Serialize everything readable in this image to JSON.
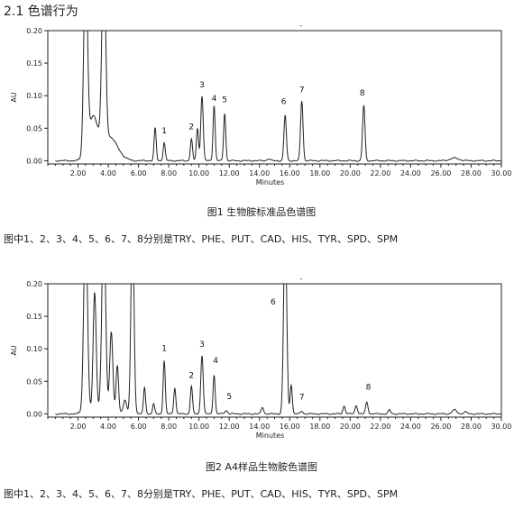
{
  "section_title": "2.1 色谱行为",
  "colors": {
    "trace": "#222222",
    "axis": "#222222",
    "grid": "#dddddd"
  },
  "chart_data": [
    {
      "type": "line",
      "caption": "图1 生物胺标准品色谱图",
      "note": "图中1、2、3、4、5、6、7、8分别是TRY、PHE、PUT、CAD、HIS、TYR、SPD、SPM",
      "ylabel": "AU",
      "xlabel": "Minutes",
      "xlim": [
        0,
        30
      ],
      "ylim": [
        -0.005,
        0.2
      ],
      "y_ticks": [
        "0.00",
        "0.05",
        "0.10",
        "0.15",
        "0.20"
      ],
      "x_ticks": [
        "2.00",
        "4.00",
        "6.00",
        "8.00",
        "10.00",
        "12.00",
        "14.00",
        "16.00",
        "18.00",
        "20.00",
        "22.00",
        "24.00",
        "26.00",
        "28.00",
        "30.00"
      ],
      "top_mark": "-",
      "peaks": [
        {
          "rt": 2.5,
          "h": 0.3,
          "w": 0.12
        },
        {
          "rt": 3.0,
          "h": 0.06,
          "w": 0.3
        },
        {
          "rt": 3.7,
          "h": 0.3,
          "w": 0.12
        },
        {
          "rt": 4.1,
          "h": 0.03,
          "w": 0.5
        },
        {
          "rt": 7.1,
          "h": 0.05,
          "w": 0.07
        },
        {
          "rt": 7.7,
          "h": 0.028,
          "w": 0.07
        },
        {
          "rt": 9.5,
          "h": 0.034,
          "w": 0.07
        },
        {
          "rt": 9.9,
          "h": 0.05,
          "w": 0.07
        },
        {
          "rt": 10.2,
          "h": 0.1,
          "w": 0.08
        },
        {
          "rt": 11.0,
          "h": 0.085,
          "w": 0.07
        },
        {
          "rt": 11.7,
          "h": 0.073,
          "w": 0.07
        },
        {
          "rt": 14.6,
          "h": 0.003,
          "w": 0.1
        },
        {
          "rt": 15.7,
          "h": 0.07,
          "w": 0.08
        },
        {
          "rt": 16.8,
          "h": 0.092,
          "w": 0.08
        },
        {
          "rt": 20.9,
          "h": 0.085,
          "w": 0.08
        },
        {
          "rt": 26.9,
          "h": 0.004,
          "w": 0.3
        }
      ],
      "labels": [
        {
          "text": "1",
          "x": 7.7,
          "y": 0.042
        },
        {
          "text": "2",
          "x": 9.5,
          "y": 0.048
        },
        {
          "text": "3",
          "x": 10.2,
          "y": 0.113
        },
        {
          "text": "4",
          "x": 11.0,
          "y": 0.092
        },
        {
          "text": "5",
          "x": 11.7,
          "y": 0.09
        },
        {
          "text": "6",
          "x": 15.6,
          "y": 0.087
        },
        {
          "text": "7",
          "x": 16.8,
          "y": 0.105
        },
        {
          "text": "8",
          "x": 20.8,
          "y": 0.1
        }
      ]
    },
    {
      "type": "line",
      "caption": "图2 A4样品生物胺色谱图",
      "note": "图中1、2、3、4、5、6、7、8分别是TRY、PHE、PUT、CAD、HIS、TYR、SPD、SPM",
      "ylabel": "AU",
      "xlabel": "Minutes",
      "xlim": [
        0,
        30
      ],
      "ylim": [
        -0.005,
        0.2
      ],
      "y_ticks": [
        "0.00",
        "0.05",
        "0.10",
        "0.15",
        "0.20"
      ],
      "x_ticks": [
        "2.00",
        "4.00",
        "6.00",
        "8.00",
        "10.00",
        "12.00",
        "14.00",
        "16.00",
        "18.00",
        "20.00",
        "22.00",
        "24.00",
        "26.00",
        "28.00",
        "30.00"
      ],
      "top_mark": "-",
      "peaks": [
        {
          "rt": 2.5,
          "h": 0.3,
          "w": 0.12
        },
        {
          "rt": 3.1,
          "h": 0.18,
          "w": 0.1
        },
        {
          "rt": 3.7,
          "h": 0.3,
          "w": 0.12
        },
        {
          "rt": 4.2,
          "h": 0.12,
          "w": 0.1
        },
        {
          "rt": 4.6,
          "h": 0.07,
          "w": 0.08
        },
        {
          "rt": 5.1,
          "h": 0.02,
          "w": 0.1
        },
        {
          "rt": 5.6,
          "h": 0.3,
          "w": 0.1
        },
        {
          "rt": 6.4,
          "h": 0.04,
          "w": 0.07
        },
        {
          "rt": 7.0,
          "h": 0.015,
          "w": 0.07
        },
        {
          "rt": 7.7,
          "h": 0.082,
          "w": 0.07
        },
        {
          "rt": 8.4,
          "h": 0.04,
          "w": 0.07
        },
        {
          "rt": 9.5,
          "h": 0.043,
          "w": 0.07
        },
        {
          "rt": 10.2,
          "h": 0.09,
          "w": 0.08
        },
        {
          "rt": 11.0,
          "h": 0.06,
          "w": 0.07
        },
        {
          "rt": 11.8,
          "h": 0.005,
          "w": 0.1
        },
        {
          "rt": 14.2,
          "h": 0.01,
          "w": 0.08
        },
        {
          "rt": 15.7,
          "h": 0.3,
          "w": 0.1
        },
        {
          "rt": 16.1,
          "h": 0.045,
          "w": 0.07
        },
        {
          "rt": 16.8,
          "h": 0.004,
          "w": 0.08
        },
        {
          "rt": 19.6,
          "h": 0.012,
          "w": 0.08
        },
        {
          "rt": 20.4,
          "h": 0.013,
          "w": 0.08
        },
        {
          "rt": 21.1,
          "h": 0.018,
          "w": 0.08
        },
        {
          "rt": 22.6,
          "h": 0.006,
          "w": 0.08
        },
        {
          "rt": 26.9,
          "h": 0.006,
          "w": 0.15
        },
        {
          "rt": 27.6,
          "h": 0.003,
          "w": 0.1
        }
      ],
      "labels": [
        {
          "text": "1",
          "x": 7.7,
          "y": 0.097
        },
        {
          "text": "2",
          "x": 9.5,
          "y": 0.055
        },
        {
          "text": "3",
          "x": 10.2,
          "y": 0.103
        },
        {
          "text": "4",
          "x": 11.1,
          "y": 0.078
        },
        {
          "text": "5",
          "x": 12.0,
          "y": 0.023
        },
        {
          "text": "6",
          "x": 14.9,
          "y": 0.168
        },
        {
          "text": "7",
          "x": 16.8,
          "y": 0.022
        },
        {
          "text": "8",
          "x": 21.2,
          "y": 0.037
        }
      ]
    }
  ]
}
